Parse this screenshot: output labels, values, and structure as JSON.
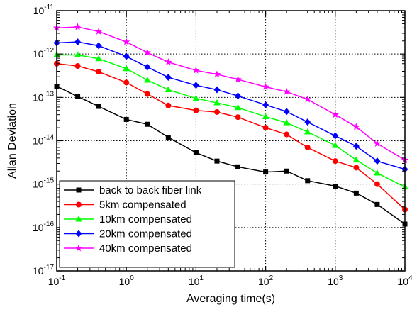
{
  "chart_data": {
    "type": "line",
    "xlabel": "Averaging time(s)",
    "ylabel": "Allan Deviation",
    "x_scale": "log",
    "y_scale": "log",
    "xlim": [
      0.1,
      10000
    ],
    "ylim": [
      1e-17,
      1e-11
    ],
    "grid": "dotted-major",
    "legend_position": "bottom-left",
    "x": [
      0.1,
      0.2,
      0.4,
      1,
      2,
      4,
      10,
      20,
      40,
      100,
      200,
      400,
      1000,
      2000,
      4000,
      10000
    ],
    "x_ticks": [
      {
        "base": "10",
        "exp": "-1",
        "value": 0.1
      },
      {
        "base": "10",
        "exp": "0",
        "value": 1
      },
      {
        "base": "10",
        "exp": "1",
        "value": 10
      },
      {
        "base": "10",
        "exp": "2",
        "value": 100
      },
      {
        "base": "10",
        "exp": "3",
        "value": 1000
      },
      {
        "base": "10",
        "exp": "4",
        "value": 10000
      }
    ],
    "y_ticks": [
      {
        "base": "10",
        "exp": "-11",
        "value": 1e-11
      },
      {
        "base": "10",
        "exp": "-12",
        "value": 1e-12
      },
      {
        "base": "10",
        "exp": "-13",
        "value": 1e-13
      },
      {
        "base": "10",
        "exp": "-14",
        "value": 1e-14
      },
      {
        "base": "10",
        "exp": "-15",
        "value": 1e-15
      },
      {
        "base": "10",
        "exp": "-16",
        "value": 1e-16
      },
      {
        "base": "10",
        "exp": "-17",
        "value": 1e-17
      }
    ],
    "series": [
      {
        "name": "back to back fiber link",
        "color": "#000000",
        "marker": "square",
        "values": [
          1.8e-13,
          1.05e-13,
          6.2e-14,
          3.1e-14,
          2.4e-14,
          1.2e-14,
          5.3e-15,
          3.4e-15,
          2.5e-15,
          1.9e-15,
          2e-15,
          1.2e-15,
          9e-16,
          6.2e-16,
          3.4e-16,
          1.2e-16
        ]
      },
      {
        "name": "5km compensated",
        "color": "#ff0000",
        "marker": "circle",
        "values": [
          6e-13,
          5.3e-13,
          3.9e-13,
          2.2e-13,
          1.2e-13,
          6.5e-14,
          5e-14,
          4.6e-14,
          3.5e-14,
          2e-14,
          1.4e-14,
          7e-15,
          3.4e-15,
          2.4e-15,
          1e-15,
          2.6e-16
        ]
      },
      {
        "name": "10km compensated",
        "color": "#00ff00",
        "marker": "triangle",
        "values": [
          9.5e-13,
          9.5e-13,
          7.8e-13,
          4.6e-13,
          2.5e-13,
          1.5e-13,
          9.5e-14,
          7.5e-14,
          5.8e-14,
          3.6e-14,
          2.6e-14,
          1.6e-14,
          7.8e-15,
          3.6e-15,
          1.8e-15,
          8.6e-16
        ]
      },
      {
        "name": "20km compensated",
        "color": "#0000ff",
        "marker": "diamond",
        "values": [
          1.8e-12,
          1.9e-12,
          1.55e-12,
          8.8e-13,
          5e-13,
          2.9e-13,
          1.9e-13,
          1.5e-13,
          1.08e-13,
          6.7e-14,
          4.7e-14,
          2.7e-14,
          1.3e-14,
          7.5e-15,
          3.4e-15,
          2.2e-15
        ]
      },
      {
        "name": "40km compensated",
        "color": "#ff00ff",
        "marker": "star",
        "values": [
          4e-12,
          4.2e-12,
          3.3e-12,
          1.9e-12,
          1.08e-12,
          6.5e-13,
          4.2e-13,
          3.4e-13,
          2.6e-13,
          1.75e-13,
          1.35e-13,
          9e-14,
          4e-14,
          2.1e-14,
          8.6e-15,
          3.6e-15
        ]
      }
    ]
  }
}
